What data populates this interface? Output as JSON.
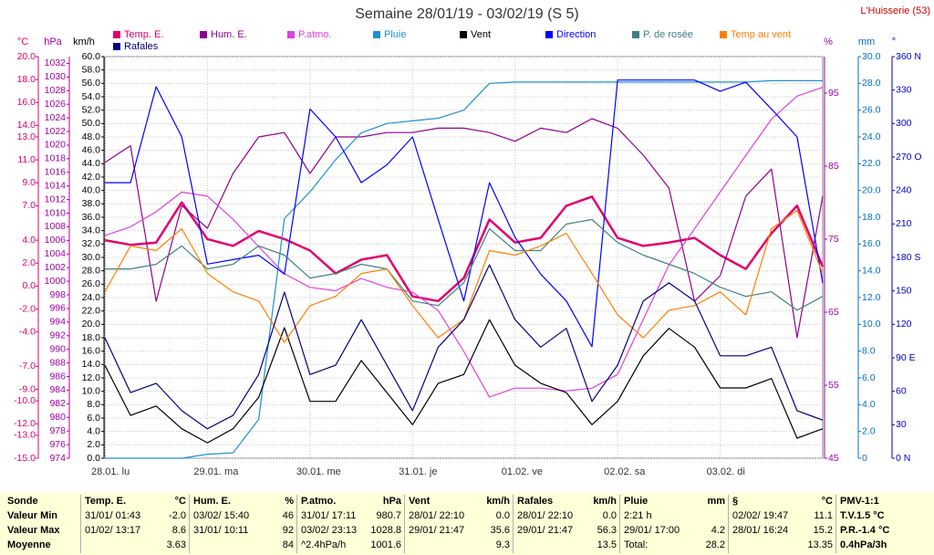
{
  "chart_data": {
    "type": "line",
    "title": "Semaine 28/01/19 - 03/02/19 (S 5)",
    "station": "L'Huisserie (53)",
    "x": [
      0,
      6,
      12,
      18,
      24,
      30,
      36,
      42,
      48,
      54,
      60,
      66,
      72,
      78,
      84,
      90,
      96,
      102,
      108,
      114,
      120,
      126,
      132,
      138,
      144,
      150,
      156,
      162,
      168
    ],
    "xlim": [
      0,
      168
    ],
    "xticks": [
      {
        "value": 0,
        "label": "28.01. lu"
      },
      {
        "value": 24,
        "label": "29.01. ma"
      },
      {
        "value": 48,
        "label": "30.01. me"
      },
      {
        "value": 72,
        "label": "31.01. je"
      },
      {
        "value": 96,
        "label": "01.02. ve"
      },
      {
        "value": 120,
        "label": "02.02. sa"
      },
      {
        "value": 144,
        "label": "03.02. di"
      }
    ],
    "axes": [
      {
        "name": "°C",
        "color": "#e0006e",
        "lim": [
          -15,
          20
        ],
        "ticks": [
          {
            "value": 20,
            "label": "20.0"
          },
          {
            "value": 18,
            "label": "18.0"
          },
          {
            "value": 16,
            "label": "16.0"
          },
          {
            "value": 14,
            "label": "14.0"
          },
          {
            "value": 13,
            "label": "13.0"
          },
          {
            "value": 11,
            "label": "11.0"
          },
          {
            "value": 9,
            "label": "9.0"
          },
          {
            "value": 7,
            "label": "7.0"
          },
          {
            "value": 4,
            "label": "4.0"
          },
          {
            "value": 2,
            "label": "2.0"
          },
          {
            "value": 0,
            "label": "0.0"
          },
          {
            "value": -2,
            "label": "-2.0"
          },
          {
            "value": -4,
            "label": "-4.0"
          },
          {
            "value": -7,
            "label": "-7.0"
          },
          {
            "value": -9,
            "label": "-9.0"
          },
          {
            "value": -10,
            "label": "-10.0"
          },
          {
            "value": -12,
            "label": "-12.0"
          },
          {
            "value": -13,
            "label": "-13.0"
          },
          {
            "value": -15,
            "label": "-15.0"
          }
        ]
      },
      {
        "name": "hPa",
        "color": "#a000a0",
        "lim": [
          974,
          1033
        ],
        "ticks": [
          1032,
          1030,
          1028,
          1026,
          1024,
          1022,
          1020,
          1018,
          1016,
          1014,
          1012,
          1010,
          1008,
          1006,
          1004,
          1002,
          1000,
          998,
          996,
          994,
          992,
          990,
          988,
          986,
          984,
          982,
          980,
          978,
          976,
          974
        ]
      },
      {
        "name": "km/h",
        "color": "#000000",
        "lim": [
          0,
          60
        ],
        "grid": true,
        "ticks": [
          {
            "value": 60,
            "label": "60.0"
          },
          {
            "value": 58,
            "label": "58.0"
          },
          {
            "value": 56,
            "label": "56.0"
          },
          {
            "value": 54,
            "label": "54.0"
          },
          {
            "value": 52,
            "label": "52.0"
          },
          {
            "value": 50,
            "label": "50.0"
          },
          {
            "value": 48,
            "label": "48.0"
          },
          {
            "value": 46,
            "label": "46.0"
          },
          {
            "value": 44,
            "label": "44.0"
          },
          {
            "value": 42,
            "label": "42.0"
          },
          {
            "value": 40,
            "label": "40.0"
          },
          {
            "value": 38,
            "label": "38.0"
          },
          {
            "value": 36,
            "label": "36.0"
          },
          {
            "value": 34,
            "label": "34.0"
          },
          {
            "value": 32,
            "label": "32.0"
          },
          {
            "value": 30,
            "label": "30.0"
          },
          {
            "value": 28,
            "label": "28.0"
          },
          {
            "value": 26,
            "label": "26.0"
          },
          {
            "value": 24,
            "label": "24.0"
          },
          {
            "value": 22,
            "label": "22.0"
          },
          {
            "value": 20,
            "label": "20.0"
          },
          {
            "value": 18,
            "label": "18.0"
          },
          {
            "value": 16,
            "label": "16.0"
          },
          {
            "value": 14,
            "label": "14.0"
          },
          {
            "value": 12,
            "label": "12.0"
          },
          {
            "value": 10,
            "label": "10.0"
          },
          {
            "value": 8,
            "label": "8.0"
          },
          {
            "value": 6,
            "label": "6.0"
          },
          {
            "value": 4,
            "label": "4.0"
          },
          {
            "value": 2,
            "label": "2.0"
          },
          {
            "value": 0,
            "label": "0.0"
          }
        ]
      },
      {
        "name": "%",
        "color": "#a000a0",
        "lim": [
          45,
          100
        ],
        "ticks": [
          95,
          85,
          75,
          65,
          55,
          45
        ]
      },
      {
        "name": "mm",
        "color": "#0070c0",
        "lim": [
          0,
          30
        ],
        "ticks": [
          {
            "value": 30,
            "label": "30.0"
          },
          {
            "value": 28,
            "label": "28.0"
          },
          {
            "value": 26,
            "label": "26.0"
          },
          {
            "value": 24,
            "label": "24.0"
          },
          {
            "value": 22,
            "label": "22.0"
          },
          {
            "value": 20,
            "label": "20.0"
          },
          {
            "value": 18,
            "label": "18.0"
          },
          {
            "value": 16,
            "label": "16.0"
          },
          {
            "value": 14,
            "label": "14.0"
          },
          {
            "value": 12,
            "label": "12.0"
          },
          {
            "value": 10,
            "label": "10.0"
          },
          {
            "value": 8,
            "label": "8.0"
          },
          {
            "value": 6,
            "label": "6.0"
          },
          {
            "value": 4,
            "label": "4.0"
          },
          {
            "value": 2,
            "label": "2.0"
          },
          0
        ]
      },
      {
        "name": "°",
        "color": "#0000c0",
        "lim": [
          0,
          360
        ],
        "ticks": [
          {
            "value": 360,
            "label": "360 N"
          },
          330,
          300,
          {
            "value": 270,
            "label": "270 O"
          },
          240,
          210,
          {
            "value": 180,
            "label": "180 S"
          },
          150,
          120,
          {
            "value": 90,
            "label": "90 E"
          },
          60,
          30,
          {
            "value": 0,
            "label": "0 N"
          }
        ]
      }
    ],
    "series": [
      {
        "name": "Temp. E.",
        "color": "#e0006e",
        "axis": 0,
        "width": 2.5,
        "values": [
          4.0,
          3.6,
          3.8,
          7.3,
          4.1,
          3.5,
          4.8,
          4.1,
          3.1,
          1.1,
          2.3,
          2.7,
          -0.9,
          -1.3,
          0.7,
          5.8,
          3.8,
          4.2,
          7.0,
          7.8,
          4.2,
          3.5,
          3.8,
          4.2,
          2.7,
          1.5,
          4.6,
          7.0,
          1.7
        ]
      },
      {
        "name": "Hum. E.",
        "color": "#900090",
        "axis": 3,
        "values": [
          85.5,
          87.8,
          66.5,
          79.6,
          76.5,
          84,
          89,
          89.6,
          84,
          89,
          89,
          89.6,
          89.6,
          90.2,
          90.2,
          89.6,
          88.4,
          90.2,
          89.6,
          91.5,
          90.2,
          86.5,
          82,
          66.5,
          70,
          80.9,
          84.6,
          61.5,
          80.9
        ]
      },
      {
        "name": "P.atmo.",
        "color": "#e040e0",
        "axis": 1,
        "values": [
          1006.7,
          1008,
          1010.2,
          1013.1,
          1012.5,
          1009.1,
          1005.1,
          1001.1,
          999.1,
          998.6,
          1000.4,
          999.1,
          998.4,
          995.7,
          989.7,
          983,
          984.3,
          984.3,
          983.9,
          984.3,
          986.3,
          994.4,
          1002.4,
          1007.7,
          1013.1,
          1018.5,
          1023.8,
          1027.2,
          1028.5
        ]
      },
      {
        "name": "Pluie",
        "color": "#1e90d0",
        "axis": 4,
        "values": [
          0,
          0,
          0,
          0,
          0.3,
          0.4,
          2.9,
          17.9,
          19.9,
          22.3,
          24.3,
          25.0,
          25.2,
          25.4,
          26.0,
          28.0,
          28.1,
          28.1,
          28.1,
          28.1,
          28.1,
          28.1,
          28.1,
          28.1,
          28.1,
          28.1,
          28.2,
          28.2,
          28.2
        ]
      },
      {
        "name": "Vent",
        "color": "#000000",
        "axis": 2,
        "values": [
          13.9,
          6.4,
          7.8,
          4.4,
          2.3,
          4.4,
          9.1,
          19.5,
          8.5,
          8.5,
          14.6,
          9.8,
          5,
          11.2,
          12.5,
          20.7,
          13.9,
          11.2,
          9.8,
          5,
          8.5,
          15.3,
          19.4,
          16.6,
          10.5,
          10.5,
          11.9,
          3,
          4.4
        ]
      },
      {
        "name": "Direction",
        "color": "#0000ff",
        "axis": 5,
        "values": [
          247,
          247,
          333,
          288,
          174,
          178,
          182,
          165,
          313,
          288,
          247,
          263,
          288,
          214,
          141,
          247,
          198,
          165,
          141,
          100,
          339,
          339,
          339,
          339,
          329,
          337,
          313,
          288,
          157
        ]
      },
      {
        "name": "P. de rosée",
        "color": "#408080",
        "axis": 0,
        "values": [
          1.5,
          1.5,
          1.9,
          3.5,
          1.5,
          1.9,
          3.5,
          2.7,
          0.7,
          1.1,
          1.9,
          1.5,
          -1.3,
          -1.7,
          0.3,
          5.0,
          3.1,
          3.1,
          5.4,
          5.8,
          3.8,
          2.7,
          1.9,
          1.1,
          -0.1,
          -0.9,
          -0.5,
          -2.1,
          -0.9
        ]
      },
      {
        "name": "Temp au vent",
        "color": "#ff8000",
        "axis": 0,
        "values": [
          -0.5,
          3.5,
          3.1,
          5.0,
          1.1,
          -0.5,
          -1.3,
          -4.9,
          -1.7,
          -0.9,
          1.1,
          1.5,
          -1.7,
          -4.5,
          -2.9,
          3.1,
          2.7,
          3.5,
          4.6,
          1.1,
          -2.5,
          -4.5,
          -2.1,
          -1.7,
          -0.5,
          -2.5,
          5.0,
          6.6,
          1.1
        ]
      },
      {
        "name": "Rafales",
        "color": "#000080",
        "axis": 2,
        "values": [
          18,
          9.8,
          11.2,
          7.1,
          4.4,
          6.4,
          12.5,
          24.8,
          12.5,
          13.9,
          20.7,
          13.9,
          7.1,
          16.6,
          20.7,
          28.9,
          20.7,
          16.6,
          19.4,
          8.5,
          13.9,
          23.5,
          26.2,
          23.5,
          15.3,
          15.3,
          16.6,
          7.1,
          5.7
        ]
      }
    ]
  },
  "stats": {
    "corner": "Sonde",
    "rows": [
      "Valeur Min",
      "Valeur Max",
      "Moyenne"
    ],
    "columns": [
      {
        "head": "Temp. E.",
        "unit": "°C",
        "cells": [
          [
            "31/01/ 01:43",
            "-2.0"
          ],
          [
            "01/02/ 13:17",
            "8.6"
          ],
          [
            null,
            "3.63"
          ]
        ]
      },
      {
        "head": "Hum. E.",
        "unit": "%",
        "cells": [
          [
            "03/02/ 15:40",
            "46"
          ],
          [
            "31/01/ 10:11",
            "92"
          ],
          [
            null,
            "84"
          ]
        ]
      },
      {
        "head": "P.atmo.",
        "unit": "hPa",
        "cells": [
          [
            "31/01/ 17:11",
            "980.7"
          ],
          [
            "03/02/ 23:13",
            "1028.8"
          ],
          [
            "^2.4hPa/h",
            "1001.6"
          ]
        ]
      },
      {
        "head": "Vent",
        "unit": "km/h",
        "cells": [
          [
            "28/01/ 22:10",
            "0.0"
          ],
          [
            "29/01/ 21:47",
            "35.6"
          ],
          [
            null,
            "9.3"
          ]
        ]
      },
      {
        "head": "Rafales",
        "unit": "km/h",
        "cells": [
          [
            "28/01/ 22:10",
            "0.0"
          ],
          [
            "29/01/ 21:47",
            "56.3"
          ],
          [
            null,
            "13.5"
          ]
        ]
      },
      {
        "head": "Pluie",
        "unit": "mm",
        "cells": [
          [
            "2:21 h",
            null
          ],
          [
            "29/01/ 17:00",
            "4.2"
          ],
          [
            "Total:",
            "28.2"
          ]
        ]
      },
      {
        "head": "§",
        "unit": "°C",
        "cells": [
          [
            "02/02/ 19:47",
            "11.1"
          ],
          [
            "28/01/ 16:24",
            "15.2"
          ],
          [
            null,
            "13.35"
          ]
        ]
      },
      {
        "head": "PMV-1:1",
        "cells": [
          [
            "T.V.1.5 °C"
          ],
          [
            "P.R.-1.4 °C"
          ],
          [
            "0.4hPa/3h"
          ]
        ]
      }
    ]
  }
}
